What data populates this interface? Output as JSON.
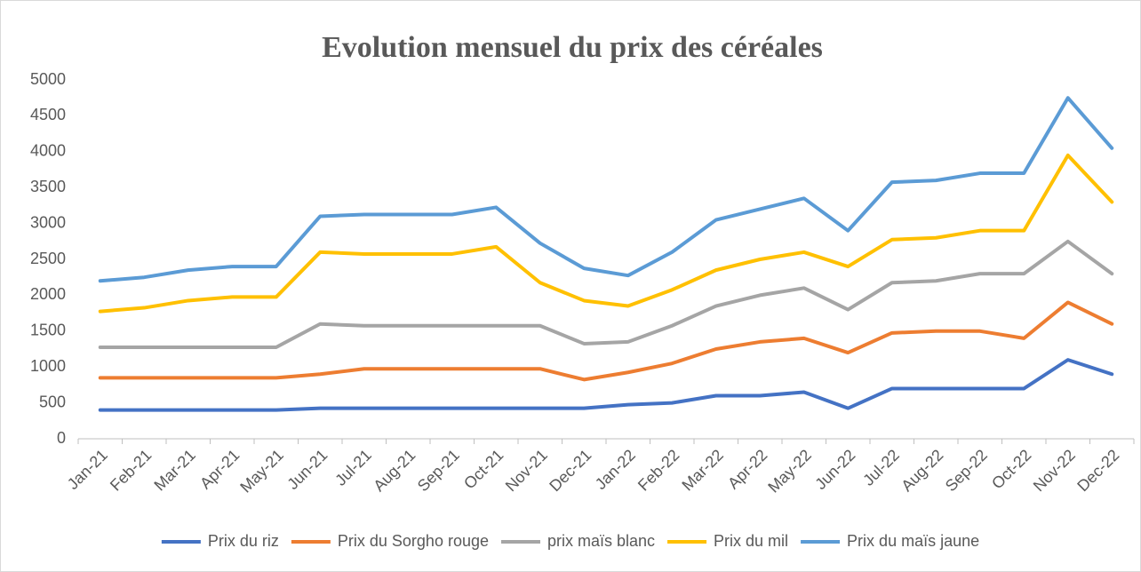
{
  "chart_data": {
    "type": "line",
    "title": "Evolution mensuel du prix des céréales",
    "categories": [
      "Jan-21",
      "Feb-21",
      "Mar-21",
      "Apr-21",
      "May-21",
      "Jun-21",
      "Jul-21",
      "Aug-21",
      "Sep-21",
      "Oct-21",
      "Nov-21",
      "Dec-21",
      "Jan-22",
      "Feb-22",
      "Mar-22",
      "Apr-22",
      "May-22",
      "Jun-22",
      "Jul-22",
      "Aug-22",
      "Sep-22",
      "Oct-22",
      "Nov-22",
      "Dec-22"
    ],
    "series": [
      {
        "name": "Prix du riz",
        "color": "#4472c4",
        "values": [
          400,
          400,
          400,
          400,
          400,
          425,
          425,
          425,
          425,
          425,
          425,
          425,
          475,
          500,
          600,
          600,
          650,
          425,
          700,
          700,
          700,
          700,
          1100,
          900
        ]
      },
      {
        "name": "Prix du Sorgho rouge",
        "color": "#ed7d31",
        "values": [
          850,
          850,
          850,
          850,
          850,
          900,
          975,
          975,
          975,
          975,
          975,
          825,
          925,
          1050,
          1250,
          1350,
          1400,
          1200,
          1475,
          1500,
          1500,
          1400,
          1900,
          1600
        ]
      },
      {
        "name": "prix maïs blanc",
        "color": "#a5a5a5",
        "values": [
          1275,
          1275,
          1275,
          1275,
          1275,
          1600,
          1575,
          1575,
          1575,
          1575,
          1575,
          1325,
          1350,
          1575,
          1850,
          2000,
          2100,
          1800,
          2175,
          2200,
          2300,
          2300,
          2750,
          2300
        ]
      },
      {
        "name": "Prix du mil",
        "color": "#ffc000",
        "values": [
          1775,
          1825,
          1925,
          1975,
          1975,
          2600,
          2575,
          2575,
          2575,
          2675,
          2175,
          1925,
          1850,
          2075,
          2350,
          2500,
          2600,
          2400,
          2775,
          2800,
          2900,
          2900,
          3950,
          3300
        ]
      },
      {
        "name": "Prix du maïs jaune",
        "color": "#5b9bd5",
        "values": [
          2200,
          2250,
          2350,
          2400,
          2400,
          3100,
          3125,
          3125,
          3125,
          3225,
          2725,
          2375,
          2275,
          2600,
          3050,
          3200,
          3350,
          2900,
          3575,
          3600,
          3700,
          3700,
          4750,
          4050
        ]
      }
    ],
    "ylim": [
      0,
      5000
    ],
    "yticks": [
      0,
      500,
      1000,
      1500,
      2000,
      2500,
      3000,
      3500,
      4000,
      4500,
      5000
    ],
    "grid": false,
    "legend": "bottom"
  }
}
